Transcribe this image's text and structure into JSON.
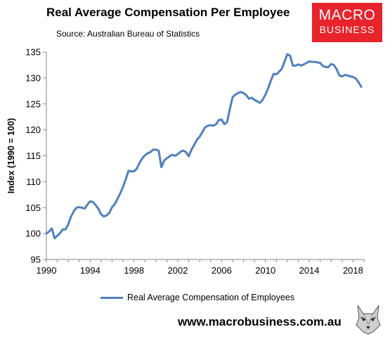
{
  "header": {
    "title": "Real Average Compensation Per Employee",
    "subtitle": "Source: Australian Bureau of Statistics"
  },
  "logo": {
    "line1": "MACRO",
    "line2": "BUSINESS"
  },
  "footer": {
    "website": "www.macrobusiness.com.au",
    "mascot_icon": "wolf-icon"
  },
  "colors": {
    "series": "#4f81bd",
    "logo_bg": "#e8232b"
  },
  "chart_data": {
    "type": "line",
    "title": "Real Average Compensation Per Employee",
    "subtitle": "Source: Australian Bureau of Statistics",
    "xlabel": "",
    "ylabel": "Index (1990 = 100)",
    "xlim": [
      1990,
      2019
    ],
    "ylim": [
      95,
      135
    ],
    "xticks": [
      1990,
      1994,
      1998,
      2002,
      2006,
      2010,
      2014,
      2018
    ],
    "yticks": [
      95,
      100,
      105,
      110,
      115,
      120,
      125,
      130,
      135
    ],
    "grid": false,
    "legend": "bottom",
    "series": [
      {
        "name": "Real Average Compensation of Employees",
        "color": "#4f81bd",
        "x": [
          1990.0,
          1990.25,
          1990.5,
          1990.75,
          1991.0,
          1991.25,
          1991.5,
          1991.75,
          1992.0,
          1992.25,
          1992.5,
          1992.75,
          1993.0,
          1993.25,
          1993.5,
          1993.75,
          1994.0,
          1994.25,
          1994.5,
          1994.75,
          1995.0,
          1995.25,
          1995.5,
          1995.75,
          1996.0,
          1996.25,
          1996.5,
          1996.75,
          1997.0,
          1997.25,
          1997.5,
          1997.75,
          1998.0,
          1998.25,
          1998.5,
          1998.75,
          1999.0,
          1999.25,
          1999.5,
          1999.75,
          2000.0,
          2000.25,
          2000.5,
          2000.75,
          2001.0,
          2001.25,
          2001.5,
          2001.75,
          2002.0,
          2002.25,
          2002.5,
          2002.75,
          2003.0,
          2003.25,
          2003.5,
          2003.75,
          2004.0,
          2004.25,
          2004.5,
          2004.75,
          2005.0,
          2005.25,
          2005.5,
          2005.75,
          2006.0,
          2006.25,
          2006.5,
          2006.75,
          2007.0,
          2007.25,
          2007.5,
          2007.75,
          2008.0,
          2008.25,
          2008.5,
          2008.75,
          2009.0,
          2009.25,
          2009.5,
          2009.75,
          2010.0,
          2010.25,
          2010.5,
          2010.75,
          2011.0,
          2011.25,
          2011.5,
          2011.75,
          2012.0,
          2012.25,
          2012.5,
          2012.75,
          2013.0,
          2013.25,
          2013.5,
          2013.75,
          2014.0,
          2014.25,
          2014.5,
          2014.75,
          2015.0,
          2015.25,
          2015.5,
          2015.75,
          2016.0,
          2016.25,
          2016.5,
          2016.75,
          2017.0,
          2017.25,
          2017.5,
          2017.75,
          2018.0,
          2018.25,
          2018.5,
          2018.75
        ],
        "values": [
          100.0,
          100.4,
          101.0,
          99.1,
          99.6,
          100.1,
          100.8,
          100.8,
          101.8,
          103.3,
          104.3,
          105.0,
          105.1,
          105.0,
          104.8,
          105.6,
          106.2,
          106.1,
          105.5,
          104.8,
          103.7,
          103.3,
          103.5,
          104.0,
          105.1,
          105.7,
          106.7,
          107.8,
          109.0,
          110.5,
          112.1,
          112.0,
          112.0,
          112.5,
          113.6,
          114.5,
          115.1,
          115.5,
          115.7,
          116.2,
          116.2,
          116.0,
          112.8,
          114.1,
          114.5,
          114.9,
          115.2,
          115.0,
          115.3,
          115.8,
          116.0,
          115.7,
          114.9,
          116.2,
          117.1,
          118.1,
          118.7,
          119.6,
          120.5,
          120.8,
          120.9,
          120.8,
          121.1,
          121.9,
          122.0,
          121.1,
          121.5,
          124.0,
          126.3,
          126.8,
          127.1,
          127.3,
          127.1,
          126.7,
          126.0,
          126.2,
          125.8,
          125.5,
          125.2,
          125.8,
          126.8,
          128.0,
          129.5,
          130.8,
          130.7,
          131.2,
          131.8,
          133.2,
          134.6,
          134.3,
          132.4,
          132.4,
          132.6,
          132.4,
          132.6,
          132.9,
          133.2,
          133.1,
          133.1,
          133.0,
          132.9,
          132.3,
          132.1,
          132.1,
          132.7,
          132.5,
          131.7,
          130.5,
          130.3,
          130.6,
          130.5,
          130.3,
          130.2,
          129.9,
          129.2,
          128.3
        ]
      }
    ]
  }
}
